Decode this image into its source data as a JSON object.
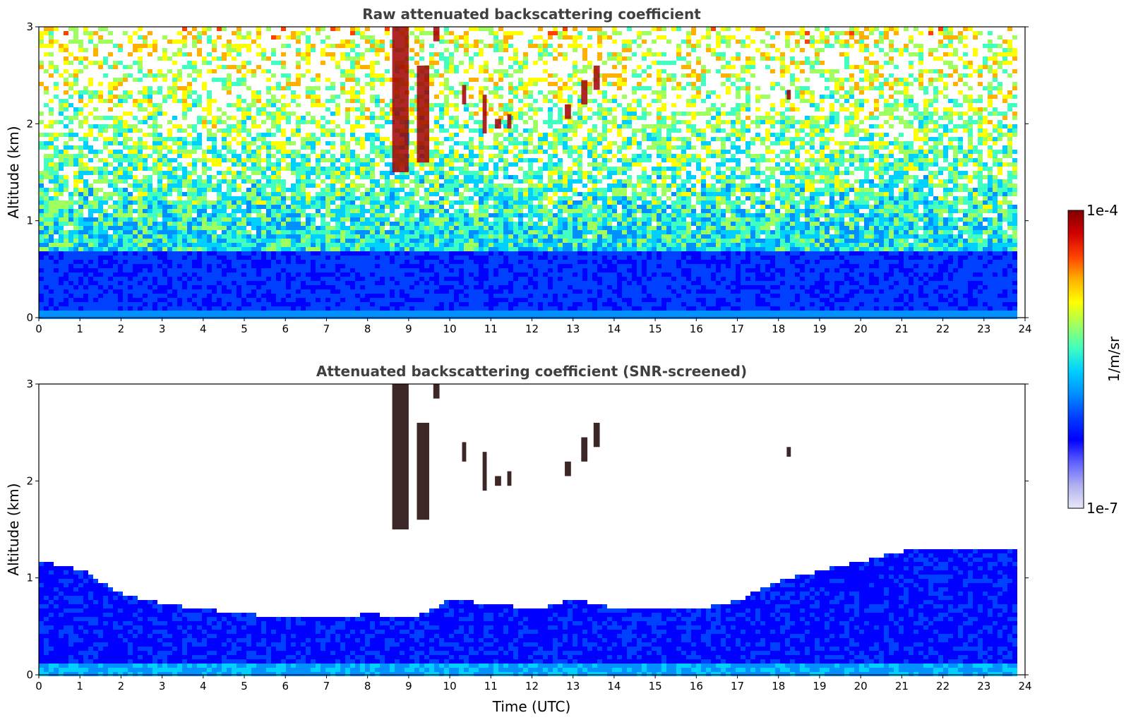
{
  "chart_data": [
    {
      "type": "heatmap",
      "title": "Raw attenuated backscattering coefficient",
      "xlabel": "",
      "ylabel": "Altitude (km)",
      "xlim": [
        0,
        24
      ],
      "ylim": [
        0,
        3
      ],
      "xticks": [
        "0",
        "1",
        "2",
        "3",
        "4",
        "5",
        "6",
        "7",
        "8",
        "9",
        "10",
        "11",
        "12",
        "13",
        "14",
        "15",
        "16",
        "17",
        "18",
        "19",
        "20",
        "21",
        "22",
        "23",
        "24"
      ],
      "yticks": [
        "0",
        "1",
        "2",
        "3"
      ],
      "data_end_time": 23.8,
      "screened": false,
      "description_features": {
        "boundary_layer_top_km": 0.7,
        "noisy_above_km": 1.0,
        "cloud_fragments": [
          {
            "t_start": 8.6,
            "t_end": 9.0,
            "z_bottom": 1.5,
            "z_top": 3.0
          },
          {
            "t_start": 9.2,
            "t_end": 9.5,
            "z_bottom": 1.6,
            "z_top": 2.6
          },
          {
            "t_start": 9.6,
            "t_end": 9.75,
            "z_bottom": 2.85,
            "z_top": 3.0
          },
          {
            "t_start": 10.3,
            "t_end": 10.4,
            "z_bottom": 2.2,
            "z_top": 2.4
          },
          {
            "t_start": 10.8,
            "t_end": 10.9,
            "z_bottom": 1.9,
            "z_top": 2.3
          },
          {
            "t_start": 11.1,
            "t_end": 11.25,
            "z_bottom": 1.95,
            "z_top": 2.05
          },
          {
            "t_start": 11.4,
            "t_end": 11.5,
            "z_bottom": 1.95,
            "z_top": 2.1
          },
          {
            "t_start": 12.8,
            "t_end": 12.95,
            "z_bottom": 2.05,
            "z_top": 2.2
          },
          {
            "t_start": 13.2,
            "t_end": 13.35,
            "z_bottom": 2.2,
            "z_top": 2.45
          },
          {
            "t_start": 13.5,
            "t_end": 13.65,
            "z_bottom": 2.35,
            "z_top": 2.6
          },
          {
            "t_start": 18.2,
            "t_end": 18.3,
            "z_bottom": 2.25,
            "z_top": 2.35
          }
        ]
      }
    },
    {
      "type": "heatmap",
      "title": "Attenuated backscattering coefficient (SNR-screened)",
      "xlabel": "Time (UTC)",
      "ylabel": "Altitude (km)",
      "xlim": [
        0,
        24
      ],
      "ylim": [
        0,
        3
      ],
      "xticks": [
        "0",
        "1",
        "2",
        "3",
        "4",
        "5",
        "6",
        "7",
        "8",
        "9",
        "10",
        "11",
        "12",
        "13",
        "14",
        "15",
        "16",
        "17",
        "18",
        "19",
        "20",
        "21",
        "22",
        "23",
        "24"
      ],
      "yticks": [
        "0",
        "1",
        "2",
        "3"
      ],
      "data_end_time": 23.8,
      "screened": true,
      "screen_top_km_by_hour": [
        1.2,
        1.1,
        0.85,
        0.75,
        0.7,
        0.65,
        0.6,
        0.6,
        0.65,
        0.6,
        0.8,
        0.75,
        0.7,
        0.8,
        0.7,
        0.7,
        0.7,
        0.8,
        1.0,
        1.1,
        1.2,
        1.3,
        1.3,
        1.3,
        1.3
      ]
    }
  ],
  "colorbar": {
    "max_label": "1e-4",
    "min_label": "1e-7",
    "unit_label": "1/m/sr",
    "colors": [
      "#e8e8f8",
      "#b0b0f0",
      "#6060ff",
      "#0000ff",
      "#0040ff",
      "#0090ff",
      "#00d0ff",
      "#40ffc0",
      "#a0ff60",
      "#ffff00",
      "#ffb000",
      "#ff4000",
      "#d00000",
      "#800000"
    ]
  }
}
